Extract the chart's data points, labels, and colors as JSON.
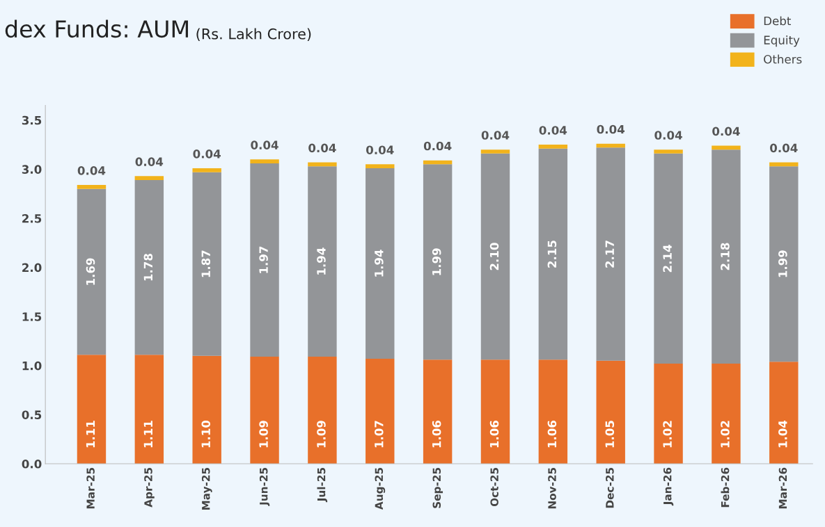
{
  "chart_data": {
    "type": "bar",
    "title": "dex Funds: AUM",
    "subtitle": "(Rs. Lakh Crore)",
    "stacked": true,
    "legend": "top right",
    "grid": false,
    "categories": [
      "Mar-25",
      "Apr-25",
      "May-25",
      "Jun-25",
      "Jul-25",
      "Aug-25",
      "Sep-25",
      "Oct-25",
      "Nov-25",
      "Dec-25",
      "Jan-26",
      "Feb-26",
      "Mar-26"
    ],
    "ylim": [
      0,
      3.65
    ],
    "yticks": [
      {
        "value": 0,
        "label": "0.0"
      },
      {
        "value": 0.5,
        "label": "0.5"
      },
      {
        "value": 1,
        "label": "1.0"
      },
      {
        "value": 1.5,
        "label": "1.5"
      },
      {
        "value": 2,
        "label": "2.0"
      },
      {
        "value": 2.5,
        "label": "2.5"
      },
      {
        "value": 3,
        "label": "3.0"
      },
      {
        "value": 3.5,
        "label": "3.5"
      }
    ],
    "series": [
      {
        "name": "Debt",
        "color": "#e8702a",
        "values": [
          1.11,
          1.11,
          1.1,
          1.09,
          1.09,
          1.07,
          1.06,
          1.06,
          1.06,
          1.05,
          1.02,
          1.02,
          1.04
        ],
        "value_labels": [
          "1.11",
          "1.11",
          "1.10",
          "1.09",
          "1.09",
          "1.07",
          "1.06",
          "1.06",
          "1.06",
          "1.05",
          "1.02",
          "1.02",
          "1.04"
        ]
      },
      {
        "name": "Equity",
        "color": "#939598",
        "values": [
          1.69,
          1.78,
          1.87,
          1.97,
          1.94,
          1.94,
          1.99,
          2.1,
          2.15,
          2.17,
          2.14,
          2.18,
          1.99
        ],
        "value_labels": [
          "1.69",
          "1.78",
          "1.87",
          "1.97",
          "1.94",
          "1.94",
          "1.99",
          "2.10",
          "2.15",
          "2.17",
          "2.14",
          "2.18",
          "1.99"
        ]
      },
      {
        "name": "Others",
        "color": "#f2b31b",
        "values": [
          0.04,
          0.04,
          0.04,
          0.04,
          0.04,
          0.04,
          0.04,
          0.04,
          0.04,
          0.04,
          0.04,
          0.04,
          0.04
        ],
        "value_labels": [
          "0.04",
          "0.04",
          "0.04",
          "0.04",
          "0.04",
          "0.04",
          "0.04",
          "0.04",
          "0.04",
          "0.04",
          "0.04",
          "0.04",
          "0.04"
        ]
      }
    ]
  }
}
